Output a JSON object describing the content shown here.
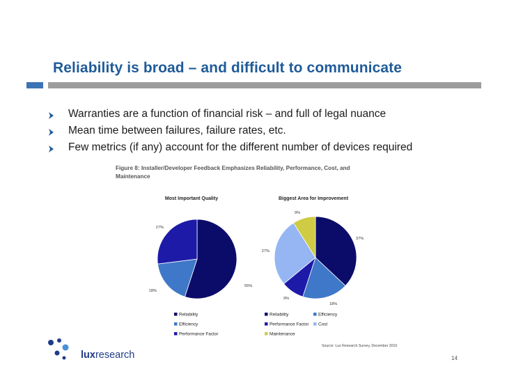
{
  "slide": {
    "title": "Reliability is broad – and difficult to communicate",
    "bullets": [
      "Warranties are a function of financial risk – and full of legal nuance",
      "Mean time between failures, failure rates, etc.",
      "Few metrics (if any) account for the different number of devices required"
    ],
    "page_number": "14"
  },
  "figure": {
    "caption_line1": "Figure 8: Installer/Developer Feedback Emphasizes Reliability, Performance, Cost, and",
    "caption_line2": "Maintenance",
    "source": "Source: Lux Research Survey, December 2010"
  },
  "logo": {
    "bold_part": "lux",
    "regular_part": "research"
  },
  "colors": {
    "title": "#1f5b99",
    "accent": "#3c74b6",
    "rule": "#9c9c9c",
    "reliability": "#0b0c6a",
    "efficiency": "#3f78c8",
    "performance_factor": "#1e1aa8",
    "cost": "#95b6f2",
    "maintenance": "#cfcb45"
  },
  "chart_data": [
    {
      "type": "pie",
      "title": "Most Important Quality",
      "slices": [
        {
          "label": "Reliability",
          "value": 55,
          "display": "55%",
          "color": "#0b0c6a"
        },
        {
          "label": "Efficiency",
          "value": 18,
          "display": "18%",
          "color": "#3f78c8"
        },
        {
          "label": "Performance Factor",
          "value": 27,
          "display": "27%",
          "color": "#1e1aa8"
        }
      ],
      "legend": [
        "Reliability",
        "Efficiency",
        "Performance Factor"
      ],
      "legend_placement": "bottom"
    },
    {
      "type": "pie",
      "title": "Biggest Area for Improvement",
      "slices": [
        {
          "label": "Reliability",
          "value": 37,
          "display": "37%",
          "color": "#0b0c6a"
        },
        {
          "label": "Efficiency",
          "value": 18,
          "display": "18%",
          "color": "#3f78c8"
        },
        {
          "label": "Performance Factor",
          "value": 9,
          "display": "9%",
          "color": "#1e1aa8"
        },
        {
          "label": "Cost",
          "value": 27,
          "display": "27%",
          "color": "#95b6f2"
        },
        {
          "label": "Maintenance",
          "value": 9,
          "display": "9%",
          "color": "#cfcb45"
        }
      ],
      "legend": [
        "Reliability",
        "Efficiency",
        "Performance Factor",
        "Cost",
        "Maintenance"
      ],
      "legend_placement": "bottom"
    }
  ]
}
